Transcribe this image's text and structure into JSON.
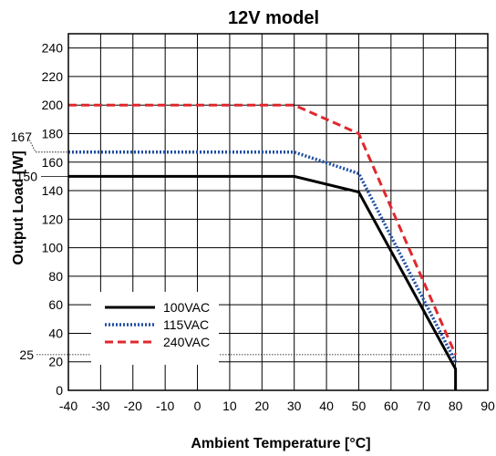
{
  "chart_data": {
    "type": "line",
    "title": "12V model",
    "xlabel": "Ambient Temperature [°C]",
    "ylabel": "Output Load [W]",
    "xlim": [
      -40,
      90
    ],
    "ylim": [
      0,
      250
    ],
    "x_ticks": [
      -40,
      -30,
      -20,
      -10,
      0,
      10,
      20,
      30,
      40,
      50,
      60,
      70,
      80,
      90
    ],
    "y_ticks": [
      0,
      20,
      40,
      60,
      80,
      100,
      120,
      140,
      160,
      180,
      200,
      220,
      240
    ],
    "grid": true,
    "legend_position": "bottom-left",
    "reference_lines": [
      {
        "label": "167",
        "y": 167
      },
      {
        "label": "150",
        "y": 150
      },
      {
        "label": "25",
        "y": 25
      }
    ],
    "series": [
      {
        "name": "100VAC",
        "color": "#000000",
        "style": "solid",
        "points": [
          [
            -40,
            150
          ],
          [
            30,
            150
          ],
          [
            50,
            139
          ],
          [
            80,
            15
          ],
          [
            80,
            0
          ]
        ]
      },
      {
        "name": "115VAC",
        "color": "#1f4ea3",
        "style": "dotted",
        "points": [
          [
            -40,
            167
          ],
          [
            30,
            167
          ],
          [
            50,
            152
          ],
          [
            80,
            20
          ]
        ]
      },
      {
        "name": "240VAC",
        "color": "#e0282e",
        "style": "dashed",
        "points": [
          [
            -40,
            200
          ],
          [
            30,
            200
          ],
          [
            50,
            180
          ],
          [
            80,
            25
          ]
        ]
      }
    ]
  }
}
